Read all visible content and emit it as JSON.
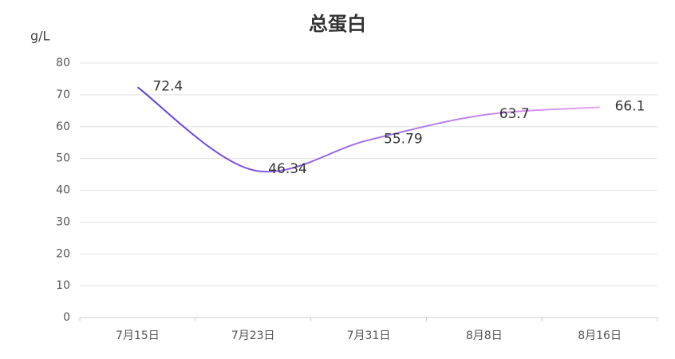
{
  "chart_data": {
    "type": "line",
    "title": "总蛋白",
    "y_label": "g/L",
    "categories": [
      "7月15日",
      "7月23日",
      "7月31日",
      "8月8日",
      "8月16日"
    ],
    "values": [
      72.4,
      46.34,
      55.79,
      63.7,
      66.1
    ],
    "color": [
      "#5b3ce0",
      "#e8a2f2"
    ],
    "ylim": [
      0,
      80
    ],
    "yticks": [
      0,
      10,
      20,
      30,
      40,
      50,
      60,
      70,
      80
    ],
    "grid": true,
    "smooth": true
  }
}
